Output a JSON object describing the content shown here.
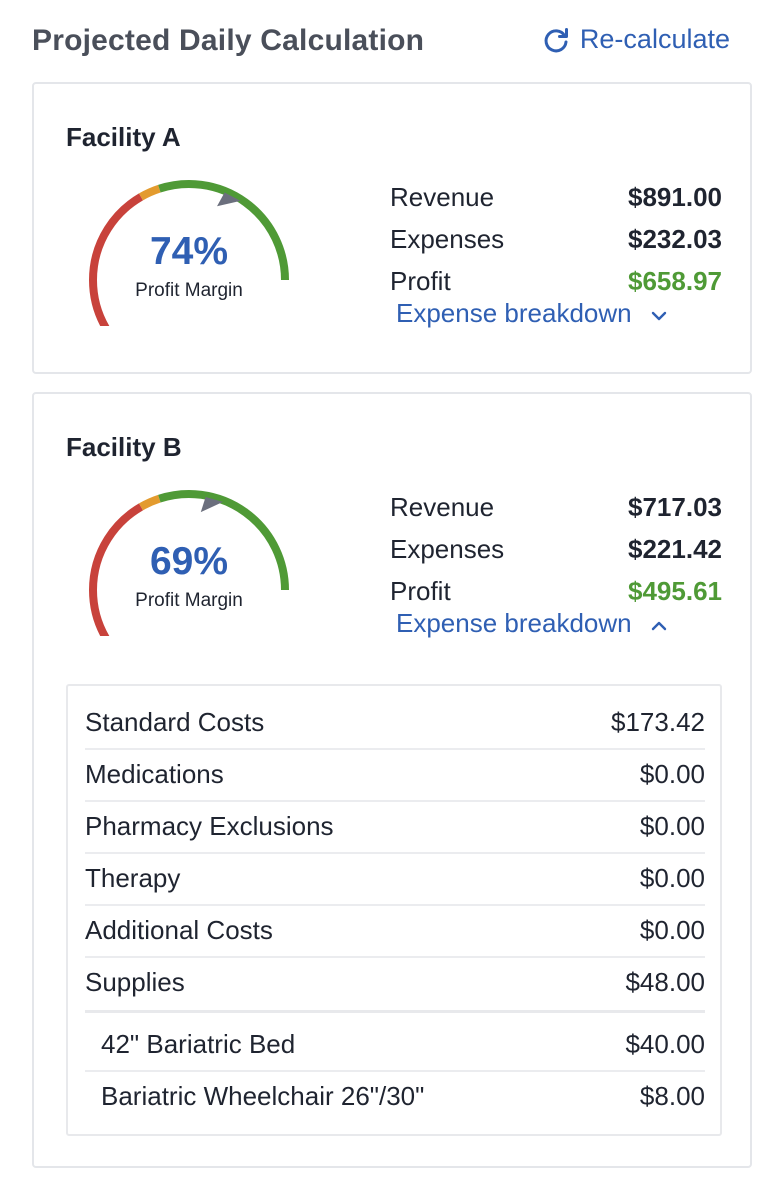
{
  "header": {
    "title": "Projected Daily Calculation",
    "recalculate_label": "Re-calculate",
    "recalculate_icon": "refresh-icon"
  },
  "colors": {
    "accent": "#2f5fb3",
    "profit": "#4f9a36",
    "gauge_red": "#c8423b",
    "gauge_orange": "#e39b2e",
    "gauge_green": "#4f9a36",
    "needle": "#6b6f7d"
  },
  "facilities": [
    {
      "name": "Facility A",
      "margin_pct": "74%",
      "margin_value": 0.74,
      "margin_label": "Profit Margin",
      "revenue_label": "Revenue",
      "revenue": "$891.00",
      "expenses_label": "Expenses",
      "expenses": "$232.03",
      "profit_label": "Profit",
      "profit": "$658.97",
      "breakdown_label": "Expense breakdown",
      "breakdown_expanded": false
    },
    {
      "name": "Facility B",
      "margin_pct": "69%",
      "margin_value": 0.69,
      "margin_label": "Profit Margin",
      "revenue_label": "Revenue",
      "revenue": "$717.03",
      "expenses_label": "Expenses",
      "expenses": "$221.42",
      "profit_label": "Profit",
      "profit": "$495.61",
      "breakdown_label": "Expense breakdown",
      "breakdown_expanded": true,
      "breakdown": [
        {
          "label": "Standard Costs",
          "value": "$173.42"
        },
        {
          "label": "Medications",
          "value": "$0.00"
        },
        {
          "label": "Pharmacy Exclusions",
          "value": "$0.00"
        },
        {
          "label": "Therapy",
          "value": "$0.00"
        },
        {
          "label": "Additional Costs",
          "value": "$0.00"
        },
        {
          "label": "Supplies",
          "value": "$48.00"
        }
      ],
      "supplies": [
        {
          "label": "42\" Bariatric Bed",
          "value": "$40.00"
        },
        {
          "label": "Bariatric Wheelchair 26\"/30\"",
          "value": "$8.00"
        }
      ]
    }
  ]
}
